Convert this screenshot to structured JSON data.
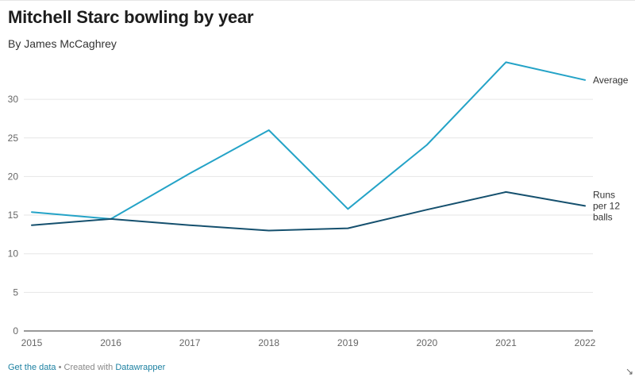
{
  "title": "Mitchell Starc bowling by year",
  "byline": "By James McCaghrey",
  "footer": {
    "get_data_label": "Get the data",
    "separator": " • Created with ",
    "tool_label": "Datawrapper"
  },
  "colors": {
    "average": "#24a3c7",
    "runs": "#15506e",
    "grid": "#e6e6e6",
    "axis": "#333333"
  },
  "icons": {
    "resize": "↘"
  },
  "chart_data": {
    "type": "line",
    "title": "Mitchell Starc bowling by year",
    "x": [
      "2015",
      "2016",
      "2017",
      "2018",
      "2019",
      "2020",
      "2021",
      "2022"
    ],
    "ylim": [
      0,
      35
    ],
    "yticks": [
      0,
      5,
      10,
      15,
      20,
      25,
      30
    ],
    "grid": true,
    "legend": "direct labels at line ends",
    "series": [
      {
        "key": "average",
        "name": "Average",
        "label_lines": [
          "Average"
        ],
        "color": "#24a3c7",
        "values": [
          15.4,
          14.5,
          20.4,
          26.0,
          15.8,
          24.1,
          34.8,
          32.5
        ]
      },
      {
        "key": "runs",
        "name": "Runs per 12 balls",
        "label_lines": [
          "Runs",
          "per 12",
          "balls"
        ],
        "color": "#15506e",
        "values": [
          13.7,
          14.5,
          13.7,
          13.0,
          13.3,
          15.7,
          18.0,
          16.2
        ]
      }
    ]
  }
}
